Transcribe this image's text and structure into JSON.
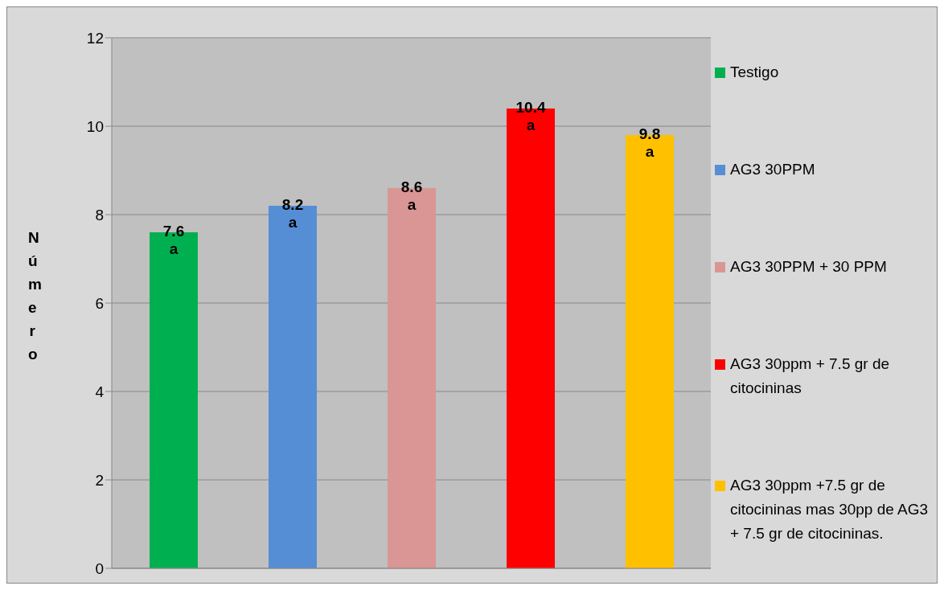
{
  "chart_data": {
    "type": "bar",
    "ylabel": "Número",
    "categories": [
      null
    ],
    "series": [
      {
        "name": "Testigo",
        "color": "#00b050",
        "values": [
          7.6
        ]
      },
      {
        "name": "AG3 30PPM",
        "color": "#558ed5",
        "values": [
          8.2
        ]
      },
      {
        "name": "AG3 30PPM + 30 PPM",
        "color": "#d99694",
        "values": [
          8.6
        ]
      },
      {
        "name": "AG3 30ppm + 7.5 gr de citocininas",
        "color": "#ff0000",
        "values": [
          10.4
        ]
      },
      {
        "name": "AG3 30ppm +7.5 gr de citocininas mas 30pp de AG3 + 7.5 gr de citocininas.",
        "color": "#ffc000",
        "values": [
          9.8
        ]
      }
    ],
    "annotations": [
      "a",
      "a",
      "a",
      "a",
      "a"
    ],
    "ylim": [
      0,
      12
    ],
    "yticks": [
      0,
      2,
      4,
      6,
      8,
      10,
      12
    ],
    "grid": "y",
    "legend": "right",
    "data_labels": true
  }
}
